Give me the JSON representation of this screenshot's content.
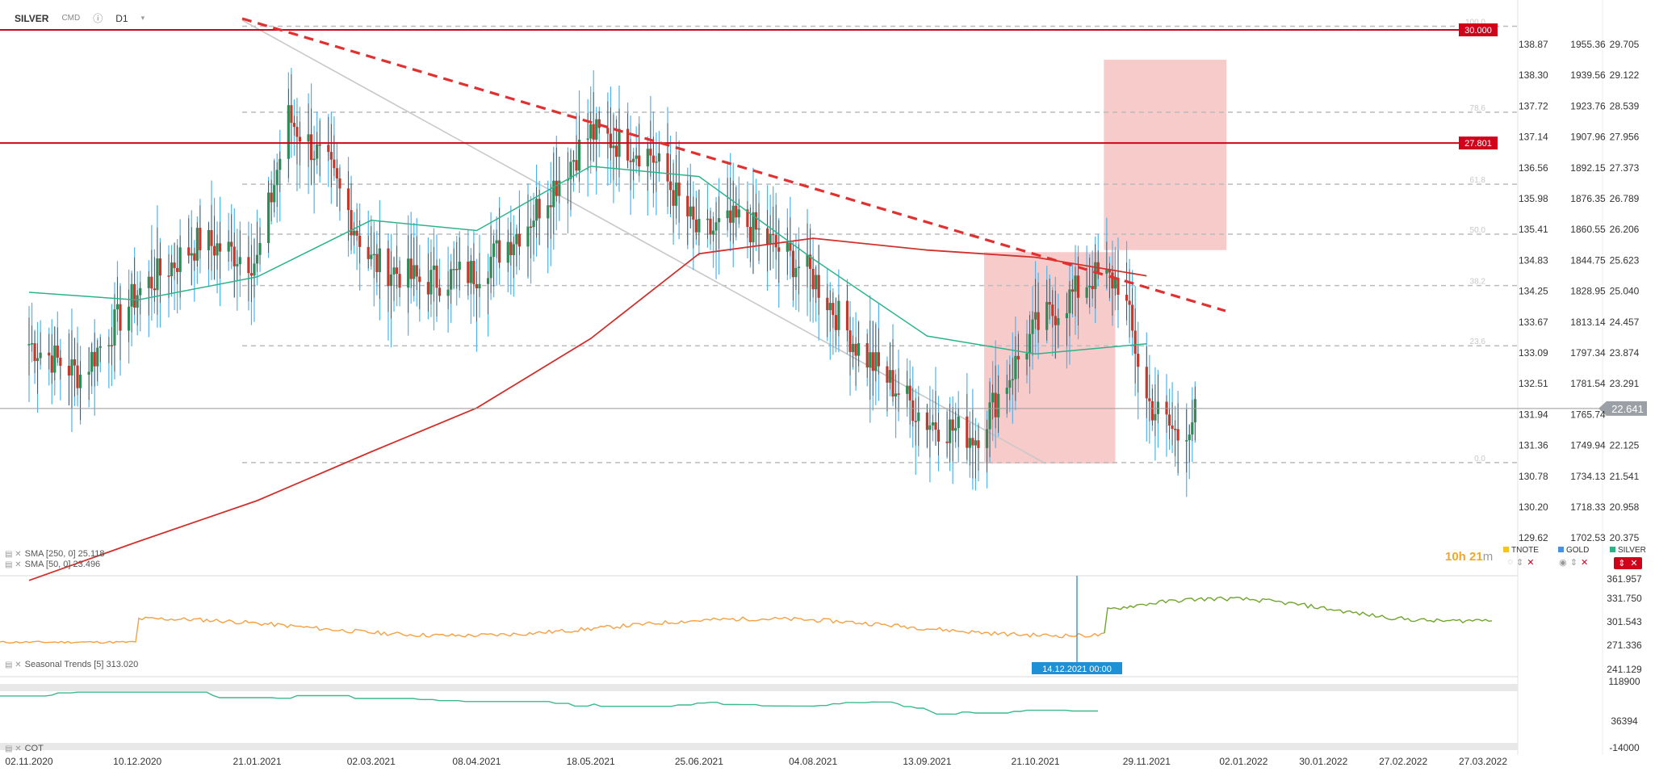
{
  "header": {
    "symbol": "SILVER",
    "type": "CMD",
    "info_icon": "info-icon",
    "timeframe": "D1",
    "dropdown_icon": "chevron-down-icon"
  },
  "timer": {
    "hours": "10h",
    "minutes": "21",
    "unit": "m"
  },
  "colors": {
    "candle_up": "#2e8b57",
    "candle_down": "#c0392b",
    "shadow_blue": "#4fb3e8",
    "sma250": "#d0312d",
    "sma50": "#2bb48a",
    "trendline": "#e03030",
    "resistance": "#d0021b",
    "fib": "#bbbbbb",
    "zone": "#f4a9a9",
    "seasonal1": "#f5a043",
    "seasonal2": "#6fa52d",
    "cot": "#3cb98d",
    "price_line": "#999999",
    "price_badge": "#9aa0a6"
  },
  "legend": {
    "sma250": "SMA  [250,  0]  25.118",
    "sma50": "SMA  [50,  0]  23.496",
    "seasonal": "Seasonal  Trends  [5]  313.020",
    "cot": "COT"
  },
  "compare": [
    {
      "name": "TNOTE",
      "color": "#f5c518"
    },
    {
      "name": "GOLD",
      "color": "#4a90e2"
    },
    {
      "name": "SILVER",
      "color": "#2bb48a"
    }
  ],
  "chart_data": {
    "type": "candlestick",
    "title": "SILVER",
    "x_ticks": [
      "02.11.2020",
      "10.12.2020",
      "21.01.2021",
      "02.03.2021",
      "08.04.2021",
      "18.05.2021",
      "25.06.2021",
      "04.08.2021",
      "13.09.2021",
      "21.10.2021",
      "29.11.2021",
      "02.01.2022",
      "30.01.2022",
      "27.02.2022",
      "27.03.2022"
    ],
    "y_ticks_main": [
      "29.705",
      "29.122",
      "28.539",
      "27.956",
      "27.373",
      "26.789",
      "26.206",
      "25.623",
      "25.040",
      "24.457",
      "23.874",
      "23.291",
      "22.708",
      "22.125",
      "21.541",
      "20.958",
      "20.375"
    ],
    "y_ticks_compare1": [
      "138.87",
      "138.30",
      "137.72",
      "137.14",
      "136.56",
      "135.98",
      "135.41",
      "134.83",
      "134.25",
      "133.67",
      "133.09",
      "132.51",
      "131.94",
      "131.36",
      "130.78",
      "130.20",
      "129.62"
    ],
    "y_ticks_compare2": [
      "1955.36",
      "1939.56",
      "1923.76",
      "1907.96",
      "1892.15",
      "1876.35",
      "1860.55",
      "1844.75",
      "1828.95",
      "1813.14",
      "1797.34",
      "1781.54",
      "1765.74",
      "1749.94",
      "1734.13",
      "1718.33",
      "1702.53"
    ],
    "ylim": [
      20.0,
      30.3
    ],
    "current_price": 22.641,
    "resistance_levels": [
      {
        "value": 30.0,
        "label": "30.000"
      },
      {
        "value": 27.801,
        "label": "27.801"
      }
    ],
    "fib_levels": [
      {
        "label": "100.0",
        "value": 30.07
      },
      {
        "label": "78.6",
        "value": 28.4
      },
      {
        "label": "61.8",
        "value": 27.0
      },
      {
        "label": "50.0",
        "value": 26.03
      },
      {
        "label": "38.2",
        "value": 25.03
      },
      {
        "label": "23.6",
        "value": 23.86
      },
      {
        "label": "0.0",
        "value": 21.59
      }
    ],
    "zones": [
      {
        "from": "03.10.2021",
        "to": "18.11.2021",
        "low": 21.57,
        "high": 25.68
      },
      {
        "from": "14.11.2021",
        "to": "27.12.2021",
        "low": 25.72,
        "high": 29.42
      }
    ],
    "sma250_points": [
      [
        "02.11.2020",
        19.3
      ],
      [
        "10.12.2020",
        20.05
      ],
      [
        "21.01.2021",
        20.85
      ],
      [
        "02.03.2021",
        21.8
      ],
      [
        "08.04.2021",
        22.65
      ],
      [
        "18.05.2021",
        24.0
      ],
      [
        "25.06.2021",
        25.65
      ],
      [
        "04.08.2021",
        25.95
      ],
      [
        "13.09.2021",
        25.72
      ],
      [
        "21.10.2021",
        25.58
      ],
      [
        "29.11.2021",
        25.22
      ]
    ],
    "sma50_points": [
      [
        "02.11.2020",
        24.9
      ],
      [
        "10.12.2020",
        24.75
      ],
      [
        "21.01.2021",
        25.2
      ],
      [
        "02.03.2021",
        26.3
      ],
      [
        "08.04.2021",
        26.1
      ],
      [
        "18.05.2021",
        27.35
      ],
      [
        "25.06.2021",
        27.15
      ],
      [
        "04.08.2021",
        25.55
      ],
      [
        "13.09.2021",
        24.05
      ],
      [
        "21.10.2021",
        23.7
      ],
      [
        "29.11.2021",
        23.9
      ]
    ],
    "date_marker": "14.12.2021 00:00",
    "seasonal_y_ticks": [
      "361.957",
      "331.750",
      "301.543",
      "271.336",
      "241.129"
    ],
    "cot_y_ticks": [
      "118900",
      "36394",
      "-14000"
    ]
  }
}
